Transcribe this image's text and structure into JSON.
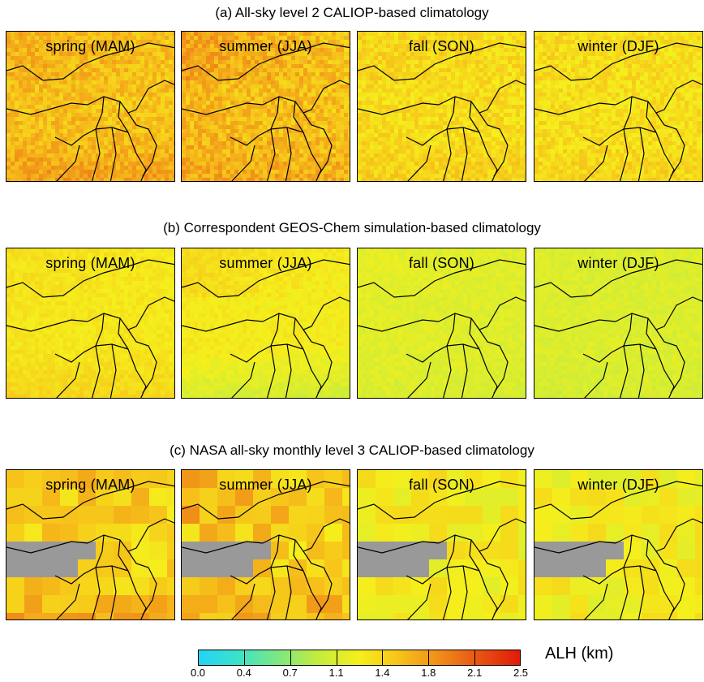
{
  "chart_data": {
    "type": "heatmap",
    "rows": [
      {
        "title": "(a) All-sky  level 2 CALIOP-based climatology",
        "panels": [
          {
            "label": "spring (MAM)",
            "base": 1.55,
            "noise": 0.18,
            "block": 5,
            "south": 0.25,
            "west": 0.1,
            "gray": false
          },
          {
            "label": "summer (JJA)",
            "base": 1.55,
            "noise": 0.2,
            "block": 5,
            "south": 0.15,
            "west": 0.2,
            "gray": false
          },
          {
            "label": "fall (SON)",
            "base": 1.38,
            "noise": 0.15,
            "block": 5,
            "south": 0.1,
            "west": 0.05,
            "gray": false
          },
          {
            "label": "winter (DJF)",
            "base": 1.35,
            "noise": 0.15,
            "block": 5,
            "south": 0.1,
            "west": 0.05,
            "gray": false
          }
        ]
      },
      {
        "title": "(b) Correspondent GEOS-Chem simulation-based climatology",
        "panels": [
          {
            "label": "spring (MAM)",
            "base": 1.3,
            "noise": 0.08,
            "block": 5,
            "south": 0.15,
            "west": 0.05,
            "gray": false
          },
          {
            "label": "summer (JJA)",
            "base": 1.25,
            "noise": 0.08,
            "block": 5,
            "south": -0.3,
            "west": 0.15,
            "gray": false
          },
          {
            "label": "fall (SON)",
            "base": 1.1,
            "noise": 0.08,
            "block": 5,
            "south": -0.05,
            "west": 0.05,
            "gray": false
          },
          {
            "label": "winter (DJF)",
            "base": 1.08,
            "noise": 0.08,
            "block": 5,
            "south": -0.05,
            "west": 0.0,
            "gray": false
          }
        ]
      },
      {
        "title": "(c) NASA all-sky monthly  level 3 CALIOP-based climatology",
        "panels": [
          {
            "label": "spring (MAM)",
            "base": 1.45,
            "noise": 0.2,
            "block": 22,
            "south": 0.35,
            "west": 0.1,
            "gray": true
          },
          {
            "label": "summer (JJA)",
            "base": 1.45,
            "noise": 0.22,
            "block": 22,
            "south": 0.25,
            "west": 0.2,
            "gray": true
          },
          {
            "label": "fall (SON)",
            "base": 1.25,
            "noise": 0.15,
            "block": 22,
            "south": 0.0,
            "west": 0.05,
            "gray": true
          },
          {
            "label": "winter (DJF)",
            "base": 1.25,
            "noise": 0.15,
            "block": 22,
            "south": 0.0,
            "west": 0.0,
            "gray": true
          }
        ]
      }
    ],
    "colorbar": {
      "label": "ALH (km)",
      "min": 0.0,
      "max": 2.5,
      "ticks": [
        "0.0",
        "0.4",
        "0.7",
        "1.1",
        "1.4",
        "1.8",
        "2.1",
        "2.5"
      ],
      "colors": [
        "#22d4f5",
        "#3ee2c8",
        "#7fe880",
        "#c6ec3c",
        "#f5ef1c",
        "#f6c21a",
        "#f08d18",
        "#e85212",
        "#df1b0a"
      ]
    }
  }
}
